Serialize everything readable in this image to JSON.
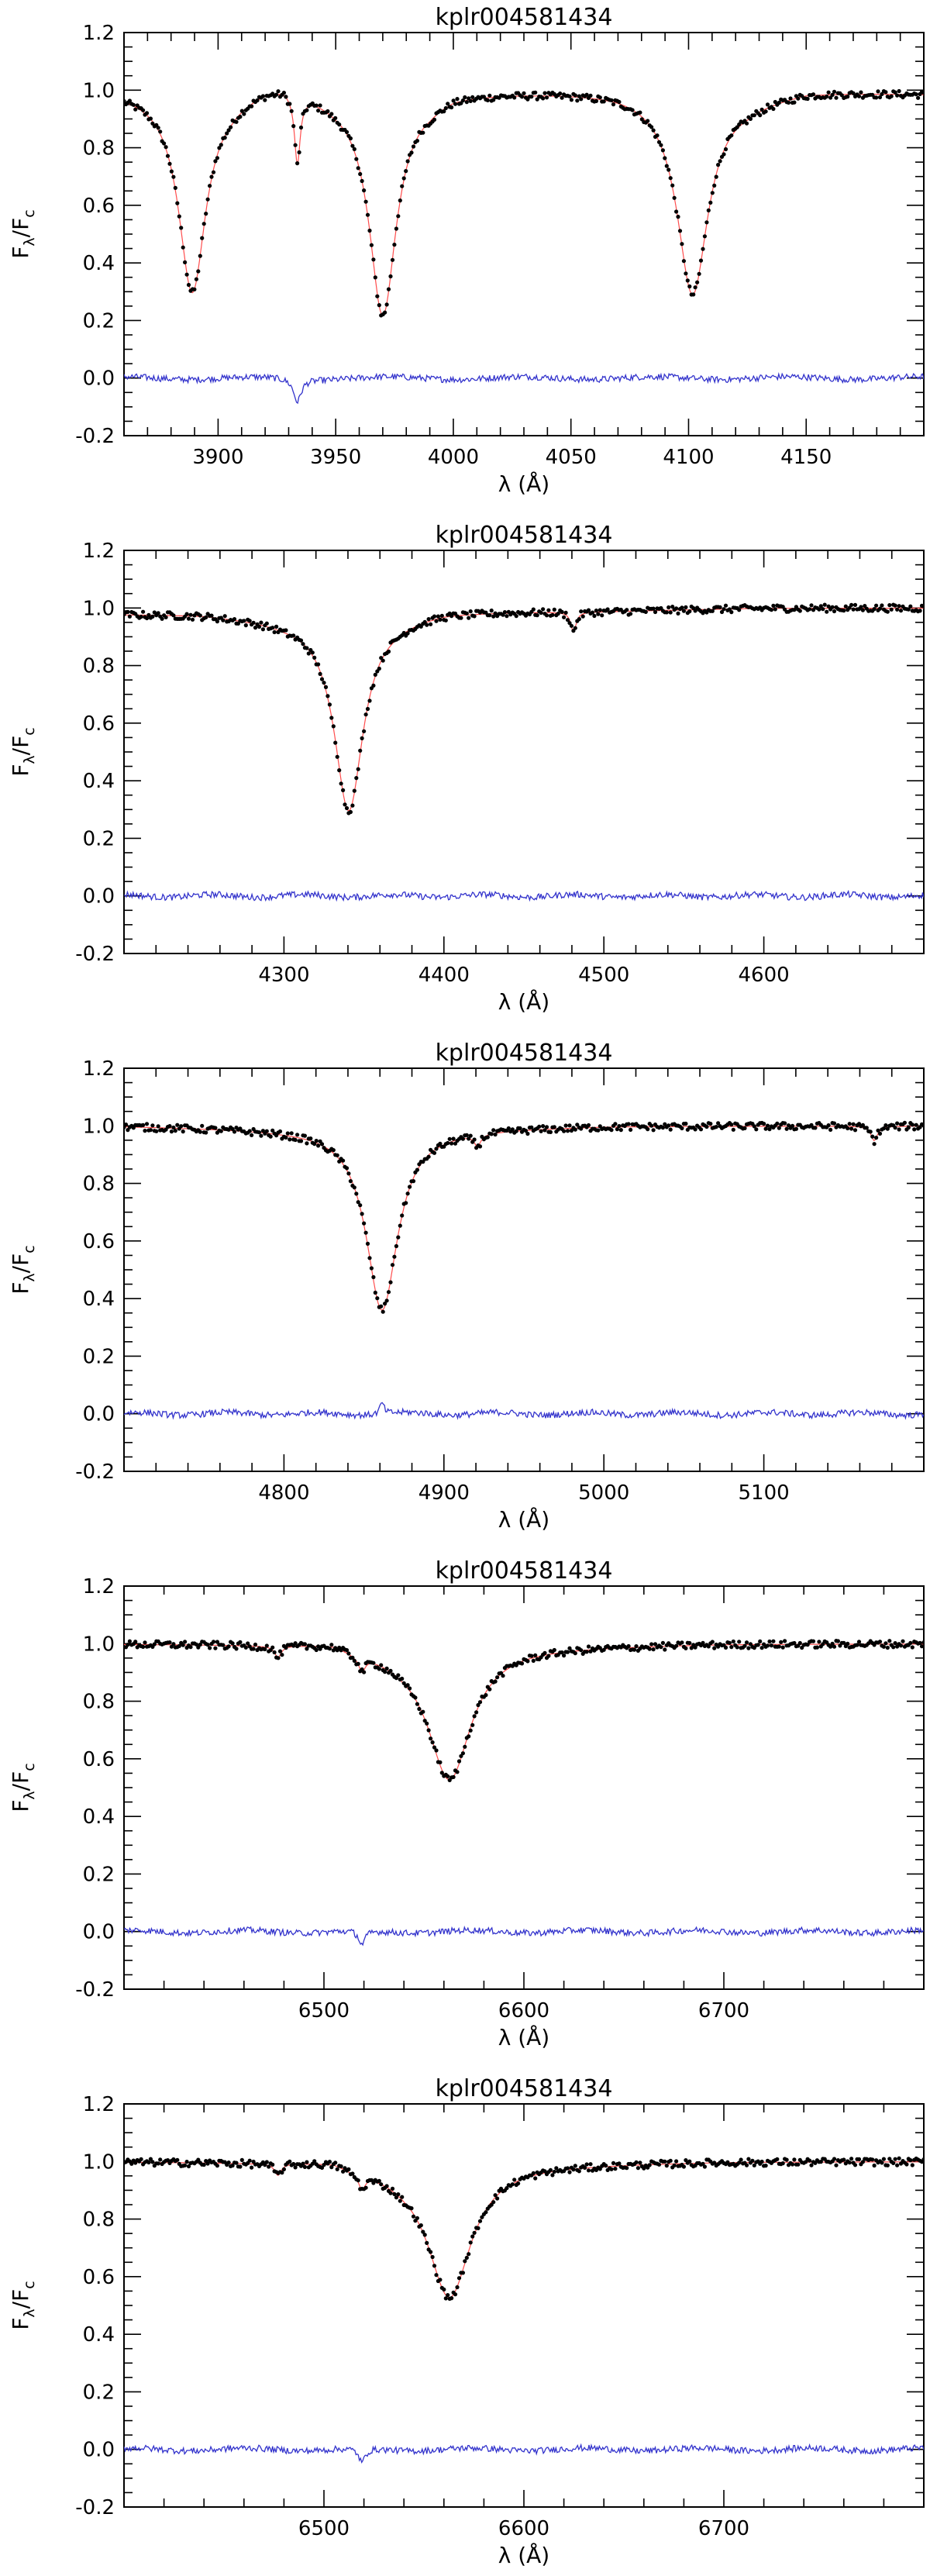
{
  "figure": {
    "colors": {
      "observed": "#000000",
      "model": "#ff4d4d",
      "residual": "#3333cc"
    }
  },
  "chart_data": [
    {
      "type": "line",
      "title": "kplr004581434",
      "xlabel": "λ (Å)",
      "ylabel_main": "F",
      "ylabel_sub_1": "λ",
      "ylabel_slash": "/F",
      "ylabel_sub_2": "c",
      "xlim": [
        3860,
        4200
      ],
      "ylim": [
        -0.2,
        1.2
      ],
      "xticks": [
        3900,
        3950,
        4000,
        4050,
        4100,
        4150
      ],
      "yticks": [
        -0.2,
        0.0,
        0.2,
        0.4,
        0.6,
        0.8,
        1.0,
        1.2
      ],
      "ytick_labels": [
        "-0.2",
        "0.0",
        "0.2",
        "0.4",
        "0.6",
        "0.8",
        "1.0",
        "1.2"
      ],
      "series": [
        {
          "role": "observed",
          "continuum": [
            [
              3860,
              1.0
            ],
            [
              3905,
              0.99
            ],
            [
              3920,
              1.03
            ],
            [
              3928,
              1.04
            ],
            [
              3945,
              1.0
            ],
            [
              3950,
              0.99
            ],
            [
              3990,
              0.98
            ],
            [
              4000,
              1.0
            ],
            [
              4070,
              1.0
            ],
            [
              4125,
              0.97
            ],
            [
              4150,
              1.0
            ],
            [
              4200,
              0.99
            ]
          ],
          "lines": [
            {
              "center": 3889,
              "depth": 0.69,
              "width": 7
            },
            {
              "center": 3933.7,
              "depth": 0.24,
              "width": 1.5
            },
            {
              "center": 3970,
              "depth": 0.76,
              "width": 7
            },
            {
              "center": 4101.7,
              "depth": 0.69,
              "width": 8
            }
          ]
        },
        {
          "role": "model"
        },
        {
          "role": "residual",
          "lines": [
            {
              "center": 3933.7,
              "depth": 0.08,
              "width": 2
            }
          ]
        }
      ]
    },
    {
      "type": "line",
      "title": "kplr004581434",
      "xlabel": "λ (Å)",
      "ylabel_main": "F",
      "ylabel_sub_1": "λ",
      "ylabel_slash": "/F",
      "ylabel_sub_2": "c",
      "xlim": [
        4200,
        4700
      ],
      "ylim": [
        -0.2,
        1.2
      ],
      "xticks": [
        4300,
        4400,
        4500,
        4600
      ],
      "yticks": [
        -0.2,
        0.0,
        0.2,
        0.4,
        0.6,
        0.8,
        1.0,
        1.2
      ],
      "ytick_labels": [
        "-0.2",
        "0.0",
        "0.2",
        "0.4",
        "0.6",
        "0.8",
        "1.0",
        "1.2"
      ],
      "series": [
        {
          "role": "observed",
          "continuum": [
            [
              4200,
              0.98
            ],
            [
              4250,
              0.98
            ],
            [
              4300,
              0.96
            ],
            [
              4370,
              0.97
            ],
            [
              4400,
              0.99
            ],
            [
              4500,
              0.99
            ],
            [
              4600,
              1.0
            ],
            [
              4700,
              1.0
            ]
          ],
          "lines": [
            {
              "center": 4340.5,
              "depth": 0.67,
              "width": 11
            },
            {
              "center": 4481,
              "depth": 0.07,
              "width": 2
            }
          ]
        },
        {
          "role": "model"
        },
        {
          "role": "residual",
          "lines": []
        }
      ]
    },
    {
      "type": "line",
      "title": "kplr004581434",
      "xlabel": "λ (Å)",
      "ylabel_main": "F",
      "ylabel_sub_1": "λ",
      "ylabel_slash": "/F",
      "ylabel_sub_2": "c",
      "xlim": [
        4700,
        5200
      ],
      "ylim": [
        -0.2,
        1.2
      ],
      "xticks": [
        4800,
        4900,
        5000,
        5100
      ],
      "yticks": [
        -0.2,
        0.0,
        0.2,
        0.4,
        0.6,
        0.8,
        1.0,
        1.2
      ],
      "ytick_labels": [
        "-0.2",
        "0.0",
        "0.2",
        "0.4",
        "0.6",
        "0.8",
        "1.0",
        "1.2"
      ],
      "series": [
        {
          "role": "observed",
          "continuum": [
            [
              4700,
              1.0
            ],
            [
              4800,
              0.99
            ],
            [
              4900,
              0.99
            ],
            [
              5000,
              1.0
            ],
            [
              5100,
              1.0
            ],
            [
              5200,
              1.0
            ]
          ],
          "lines": [
            {
              "center": 4861.3,
              "depth": 0.63,
              "width": 12
            },
            {
              "center": 4921,
              "depth": 0.04,
              "width": 2.5
            },
            {
              "center": 5169,
              "depth": 0.05,
              "width": 2.5
            }
          ]
        },
        {
          "role": "model"
        },
        {
          "role": "residual",
          "lines": [
            {
              "center": 4861.3,
              "depth": -0.04,
              "width": 1.5
            }
          ]
        }
      ]
    },
    {
      "type": "line",
      "title": "kplr004581434",
      "xlabel": "λ (Å)",
      "ylabel_main": "F",
      "ylabel_sub_1": "λ",
      "ylabel_slash": "/F",
      "ylabel_sub_2": "c",
      "xlim": [
        6400,
        6800
      ],
      "ylim": [
        -0.2,
        1.2
      ],
      "xticks": [
        6500,
        6600,
        6700
      ],
      "yticks": [
        -0.2,
        0.0,
        0.2,
        0.4,
        0.6,
        0.8,
        1.0,
        1.2
      ],
      "ytick_labels": [
        "-0.2",
        "0.0",
        "0.2",
        "0.4",
        "0.6",
        "0.8",
        "1.0",
        "1.2"
      ],
      "series": [
        {
          "role": "observed",
          "continuum": [
            [
              6400,
              1.0
            ],
            [
              6470,
              1.0
            ],
            [
              6505,
              1.01
            ],
            [
              6515,
              0.99
            ],
            [
              6540,
              0.97
            ],
            [
              6600,
              0.99
            ],
            [
              6700,
              1.0
            ],
            [
              6800,
              1.0
            ]
          ],
          "lines": [
            {
              "center": 6562.8,
              "depth": 0.45,
              "width": 13
            },
            {
              "center": 6477,
              "depth": 0.04,
              "width": 2
            },
            {
              "center": 6519,
              "depth": 0.05,
              "width": 2
            }
          ]
        },
        {
          "role": "model"
        },
        {
          "role": "residual",
          "lines": [
            {
              "center": 6519,
              "depth": 0.05,
              "width": 2
            }
          ]
        }
      ]
    },
    {
      "type": "line",
      "title": "kplr004581434",
      "xlabel": "λ (Å)",
      "ylabel_main": "F",
      "ylabel_sub_1": "λ",
      "ylabel_slash": "/F",
      "ylabel_sub_2": "c",
      "xlim": [
        6400,
        6800
      ],
      "ylim": [
        -0.2,
        1.2
      ],
      "xticks": [
        6500,
        6600,
        6700
      ],
      "yticks": [
        -0.2,
        0.0,
        0.2,
        0.4,
        0.6,
        0.8,
        1.0,
        1.2
      ],
      "ytick_labels": [
        "-0.2",
        "0.0",
        "0.2",
        "0.4",
        "0.6",
        "0.8",
        "1.0",
        "1.2"
      ],
      "series": [
        {
          "role": "observed",
          "continuum": [
            [
              6400,
              1.0
            ],
            [
              6470,
              1.0
            ],
            [
              6505,
              1.01
            ],
            [
              6515,
              0.99
            ],
            [
              6540,
              0.97
            ],
            [
              6600,
              0.99
            ],
            [
              6700,
              1.0
            ],
            [
              6800,
              1.0
            ]
          ],
          "lines": [
            {
              "center": 6562.8,
              "depth": 0.45,
              "width": 13
            },
            {
              "center": 6477,
              "depth": 0.04,
              "width": 2
            },
            {
              "center": 6519,
              "depth": 0.05,
              "width": 2
            }
          ]
        },
        {
          "role": "model"
        },
        {
          "role": "residual",
          "lines": [
            {
              "center": 6519,
              "depth": 0.05,
              "width": 2
            }
          ]
        }
      ]
    }
  ]
}
